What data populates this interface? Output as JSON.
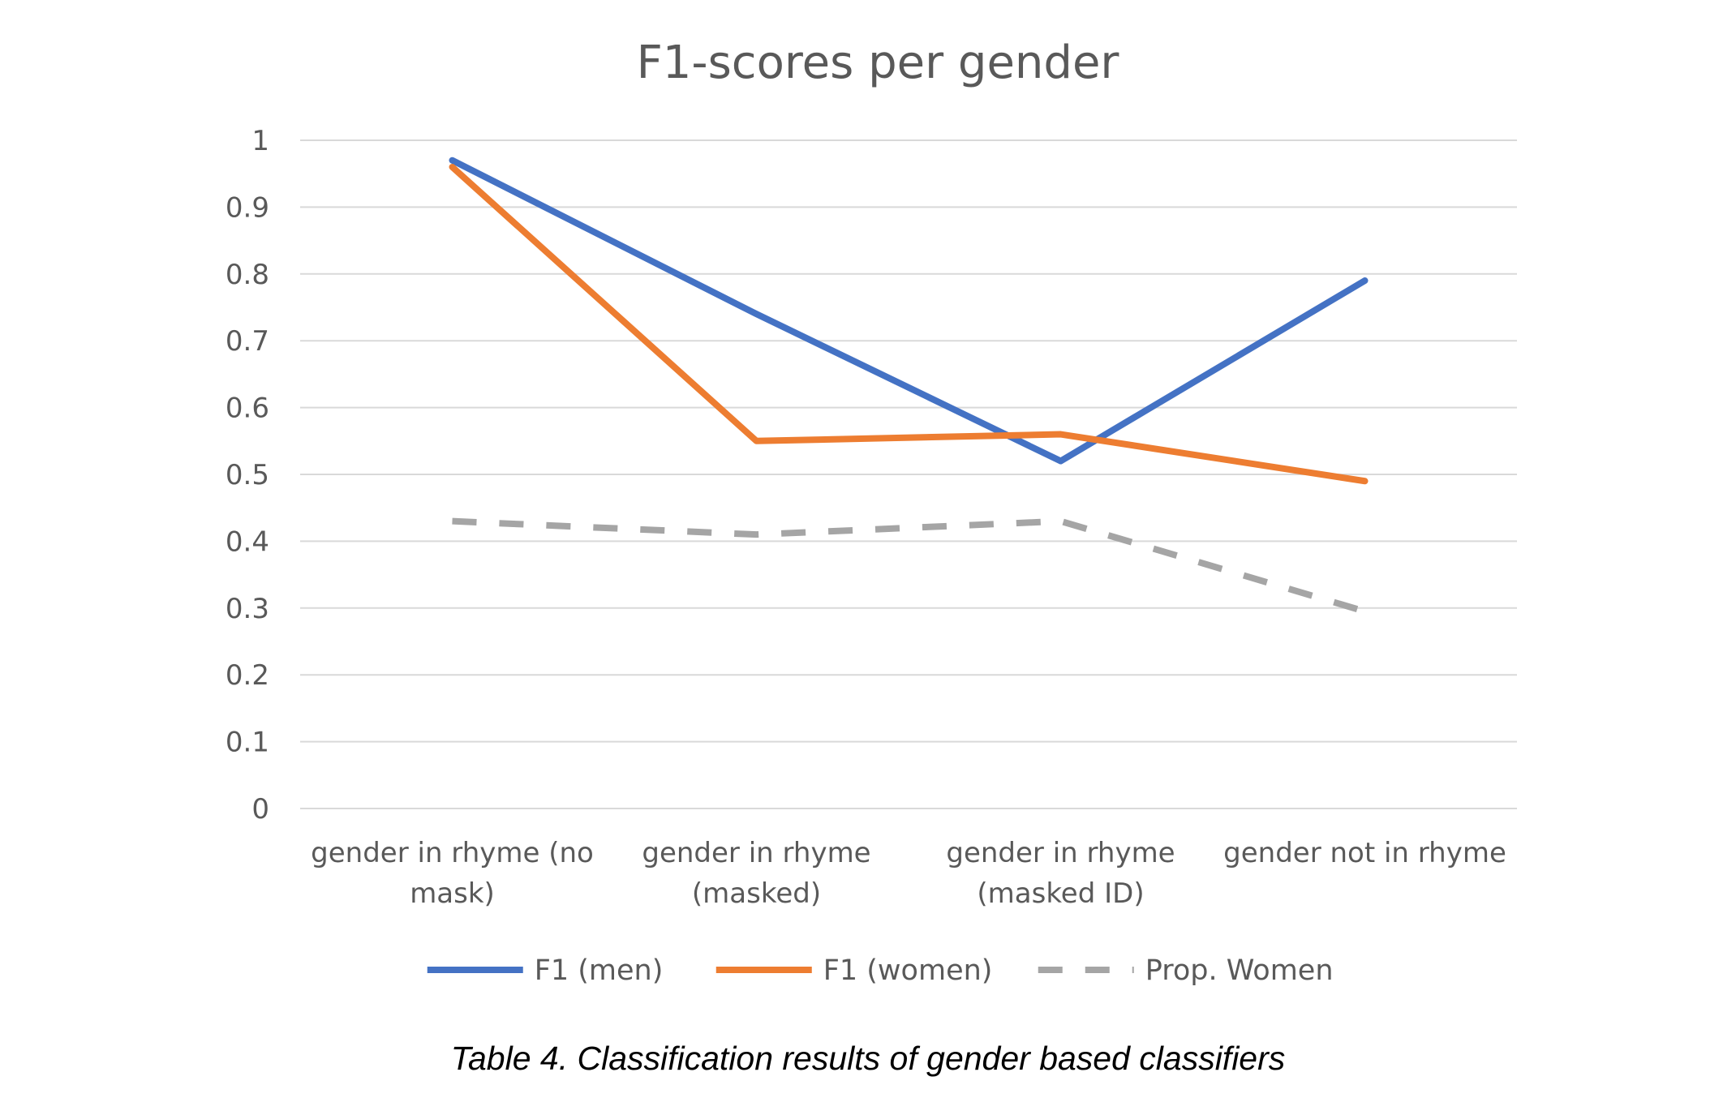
{
  "chart_data": {
    "type": "line",
    "title": "F1-scores per gender",
    "xlabel": "",
    "ylabel": "",
    "categories": [
      [
        "gender in rhyme (no",
        "mask)"
      ],
      [
        "gender in rhyme",
        "(masked)"
      ],
      [
        "gender in rhyme",
        "(masked ID)"
      ],
      [
        "gender not in rhyme"
      ]
    ],
    "ylim": [
      0,
      1
    ],
    "yticks": [
      "0",
      "0.1",
      "0.2",
      "0.3",
      "0.4",
      "0.5",
      "0.6",
      "0.7",
      "0.8",
      "0.9",
      "1"
    ],
    "grid": true,
    "legend": "bottom",
    "series": [
      {
        "name": "F1 (men)",
        "values": [
          0.97,
          0.74,
          0.52,
          0.79
        ],
        "color": "#4472C4",
        "style": "solid"
      },
      {
        "name": "F1 (women)",
        "values": [
          0.96,
          0.55,
          0.56,
          0.49
        ],
        "color": "#ED7D31",
        "style": "solid"
      },
      {
        "name": "Prop. Women",
        "values": [
          0.43,
          0.41,
          0.43,
          0.295
        ],
        "color": "#A5A5A5",
        "style": "dashed"
      }
    ]
  },
  "caption": "Table 4. Classification results of gender based classifiers"
}
